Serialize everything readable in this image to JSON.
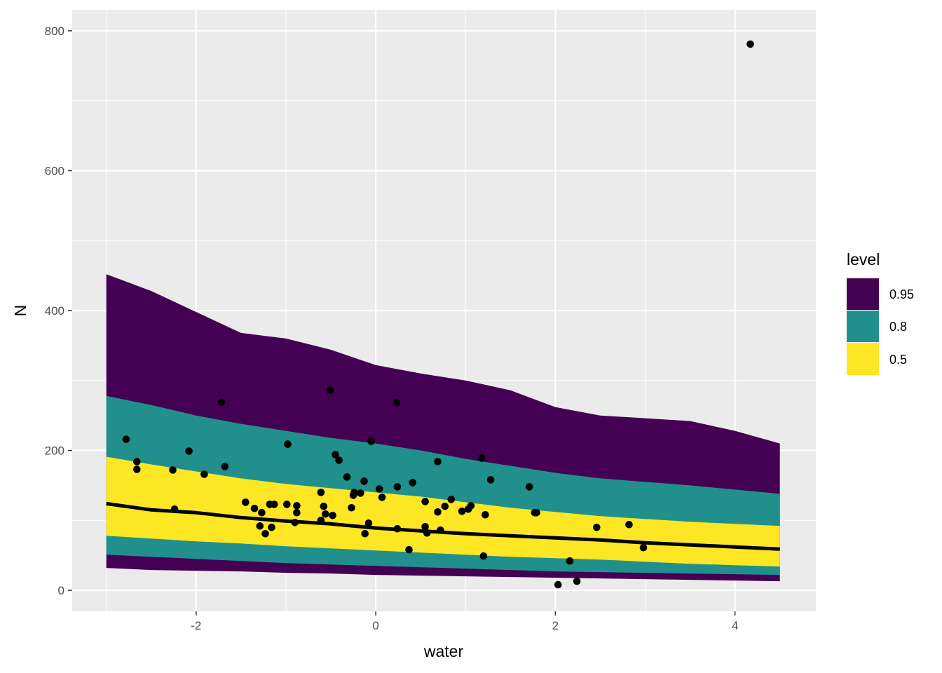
{
  "chart_data": {
    "type": "area",
    "xlabel": "water",
    "ylabel": "N",
    "xlim": [
      -3.38,
      4.9
    ],
    "ylim": [
      -30,
      830
    ],
    "x_ticks": [
      -2,
      0,
      2,
      4
    ],
    "x_tick_labels": [
      "-2",
      "0",
      "2",
      "4"
    ],
    "y_ticks": [
      0,
      200,
      400,
      600,
      800
    ],
    "y_tick_labels": [
      "0",
      "200",
      "400",
      "600",
      "800"
    ],
    "grid": true,
    "background": "#ebebeb",
    "legend": {
      "title": "level",
      "position": "right",
      "entries": [
        {
          "label": "0.95",
          "color": "#440154"
        },
        {
          "label": "0.8",
          "color": "#21908c"
        },
        {
          "label": "0.5",
          "color": "#fde725"
        }
      ]
    },
    "band_x": [
      -3.0,
      -2.5,
      -2.0,
      -1.5,
      -1.0,
      -0.5,
      0.0,
      0.5,
      1.0,
      1.5,
      2.0,
      2.5,
      3.0,
      3.5,
      4.0,
      4.5
    ],
    "bands": [
      {
        "level": "0.95",
        "color": "#440154",
        "upper": [
          452,
          428,
          398,
          368,
          360,
          344,
          322,
          310,
          300,
          286,
          262,
          250,
          246,
          242,
          228,
          210
        ],
        "lower": [
          32,
          29,
          28,
          27,
          25,
          24,
          22,
          21,
          20,
          19,
          18,
          17,
          16,
          15,
          14,
          13
        ]
      },
      {
        "level": "0.8",
        "color": "#21908c",
        "upper": [
          278,
          265,
          250,
          238,
          228,
          218,
          210,
          200,
          188,
          178,
          168,
          160,
          155,
          150,
          144,
          138
        ],
        "lower": [
          51,
          48,
          45,
          42,
          39,
          37,
          35,
          33,
          31,
          29,
          27,
          26,
          25,
          24,
          23,
          22
        ]
      },
      {
        "level": "0.5",
        "color": "#fde725",
        "upper": [
          191,
          180,
          170,
          160,
          152,
          146,
          140,
          134,
          126,
          118,
          112,
          106,
          102,
          98,
          95,
          92
        ],
        "lower": [
          78,
          74,
          70,
          67,
          63,
          60,
          57,
          54,
          51,
          48,
          46,
          44,
          41,
          38,
          36,
          34
        ]
      }
    ],
    "median_line": {
      "color": "#000000",
      "x": [
        -3.0,
        -2.5,
        -2.0,
        -1.5,
        -1.0,
        -0.5,
        0.0,
        0.5,
        1.0,
        1.5,
        2.0,
        2.5,
        3.0,
        3.5,
        4.0,
        4.5
      ],
      "y": [
        124,
        115,
        111,
        104,
        99,
        95,
        89,
        85,
        81,
        78,
        75,
        72,
        68,
        65,
        62,
        59
      ]
    },
    "points": {
      "color": "#000000",
      "x": [
        -2.78,
        -2.66,
        -2.66,
        -2.26,
        -2.24,
        -2.08,
        -1.91,
        -1.72,
        -1.68,
        -1.45,
        -1.35,
        -1.29,
        -1.27,
        -1.23,
        -1.18,
        -1.16,
        -1.13,
        -0.99,
        -0.98,
        -0.9,
        -0.88,
        -0.88,
        -0.61,
        -0.61,
        -0.58,
        -0.56,
        -0.51,
        -0.48,
        -0.45,
        -0.41,
        -0.32,
        -0.27,
        -0.25,
        -0.24,
        -0.17,
        -0.13,
        -0.12,
        -0.08,
        -0.05,
        0.04,
        0.07,
        0.23,
        0.24,
        0.24,
        0.37,
        0.41,
        0.55,
        0.55,
        0.57,
        0.69,
        0.69,
        0.72,
        0.77,
        0.84,
        0.96,
        1.03,
        1.06,
        1.18,
        1.2,
        1.22,
        1.28,
        1.71,
        1.77,
        1.79,
        2.03,
        2.16,
        2.24,
        2.46,
        2.82,
        2.98,
        4.17
      ],
      "y": [
        216,
        184,
        173,
        172,
        116,
        199,
        166,
        269,
        177,
        126,
        117,
        92,
        111,
        81,
        123,
        90,
        123,
        123,
        209,
        97,
        111,
        121,
        100,
        140,
        120,
        109,
        286,
        107,
        194,
        186,
        162,
        118,
        136,
        140,
        139,
        156,
        81,
        96,
        213,
        145,
        133,
        268,
        148,
        88,
        58,
        154,
        127,
        91,
        82,
        112,
        184,
        86,
        120,
        130,
        113,
        116,
        121,
        189,
        49,
        108,
        158,
        148,
        111,
        111,
        8,
        42,
        13,
        90,
        94,
        61,
        781
      ]
    }
  }
}
